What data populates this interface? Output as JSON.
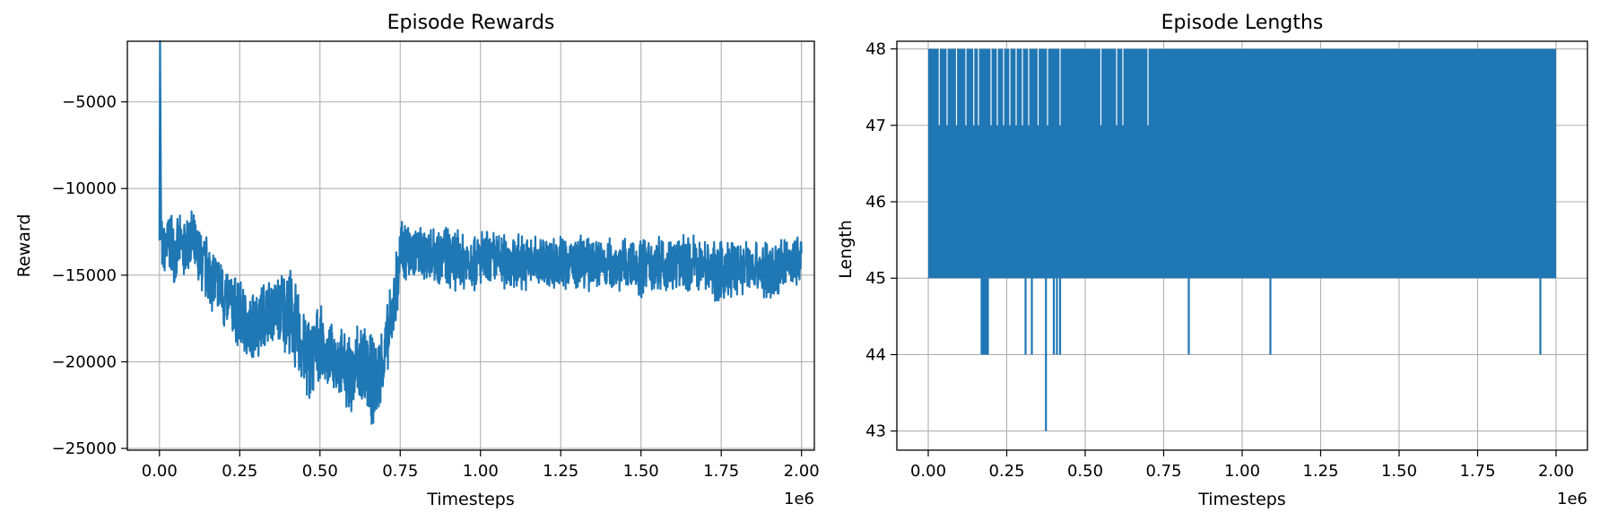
{
  "colors": {
    "series": "#1f77b4",
    "grid": "#b0b0b0",
    "axes": "#000000",
    "background": "#ffffff"
  },
  "chart_data": [
    {
      "type": "line",
      "title": "Episode Rewards",
      "xlabel": "Timesteps",
      "ylabel": "Reward",
      "x_offset_text": "1e6",
      "xlim": [
        -0.1,
        2.04
      ],
      "ylim": [
        -25100,
        -1500
      ],
      "grid": true,
      "xticks": [
        0,
        0.25,
        0.5,
        0.75,
        1.0,
        1.25,
        1.5,
        1.75,
        2.0
      ],
      "xtick_labels": [
        "0.00",
        "0.25",
        "0.50",
        "0.75",
        "1.00",
        "1.25",
        "1.50",
        "1.75",
        "2.00"
      ],
      "yticks": [
        -5000,
        -10000,
        -15000,
        -20000,
        -25000
      ],
      "ytick_labels": [
        "−5000",
        "−10000",
        "−15000",
        "−20000",
        "−25000"
      ],
      "series": [
        {
          "x": [
            0,
            0.002,
            0.005,
            0.01,
            0.02,
            0.03,
            0.04,
            0.05,
            0.06,
            0.08,
            0.1,
            0.12,
            0.15,
            0.18,
            0.2,
            0.22,
            0.25,
            0.28,
            0.3,
            0.33,
            0.35,
            0.38,
            0.4,
            0.43,
            0.45,
            0.47,
            0.5,
            0.52,
            0.55,
            0.57,
            0.6,
            0.62,
            0.65,
            0.67,
            0.7,
            0.72,
            0.74,
            0.75,
            0.78,
            0.8,
            0.85,
            0.9,
            0.95,
            1.0,
            1.05,
            1.1,
            1.15,
            1.2,
            1.25,
            1.3,
            1.35,
            1.4,
            1.45,
            1.5,
            1.55,
            1.6,
            1.65,
            1.7,
            1.75,
            1.8,
            1.85,
            1.9,
            1.95,
            2.0
          ],
          "low": [
            -13000,
            -2000,
            -14000,
            -15500,
            -15500,
            -15000,
            -15500,
            -15500,
            -15000,
            -15500,
            -15000,
            -16000,
            -17000,
            -17500,
            -18500,
            -18500,
            -19500,
            -20500,
            -20000,
            -19500,
            -19000,
            -19500,
            -20000,
            -21000,
            -22000,
            -23000,
            -21000,
            -21500,
            -22000,
            -22500,
            -23500,
            -23000,
            -23500,
            -24000,
            -22000,
            -20000,
            -18000,
            -16000,
            -15500,
            -15500,
            -15500,
            -16000,
            -16000,
            -16000,
            -16000,
            -16000,
            -16000,
            -16000,
            -16000,
            -16000,
            -16000,
            -16000,
            -16000,
            -16500,
            -16000,
            -16000,
            -16000,
            -16000,
            -17000,
            -16500,
            -16000,
            -17000,
            -16000,
            -15500
          ],
          "high": [
            -11500,
            -1500,
            -11000,
            -12000,
            -11500,
            -11000,
            -11000,
            -12000,
            -11500,
            -11500,
            -11000,
            -12000,
            -12500,
            -13500,
            -14000,
            -14500,
            -15000,
            -16000,
            -15500,
            -15000,
            -15000,
            -14500,
            -14000,
            -15500,
            -16500,
            -17000,
            -16500,
            -18000,
            -17500,
            -18000,
            -18500,
            -17000,
            -18000,
            -18500,
            -17500,
            -15500,
            -13000,
            -11500,
            -11700,
            -12000,
            -11800,
            -12000,
            -12300,
            -12200,
            -12300,
            -12400,
            -12600,
            -12500,
            -12500,
            -12600,
            -12600,
            -12500,
            -12800,
            -12600,
            -12500,
            -12700,
            -12500,
            -12800,
            -12900,
            -12700,
            -12800,
            -12900,
            -12700,
            -12500
          ]
        }
      ]
    },
    {
      "type": "line",
      "title": "Episode Lengths",
      "xlabel": "Timesteps",
      "ylabel": "Length",
      "x_offset_text": "1e6",
      "xlim": [
        -0.1,
        2.1
      ],
      "ylim": [
        42.75,
        48.1
      ],
      "grid": true,
      "xticks": [
        0,
        0.25,
        0.5,
        0.75,
        1.0,
        1.25,
        1.5,
        1.75,
        2.0
      ],
      "xtick_labels": [
        "0.00",
        "0.25",
        "0.50",
        "0.75",
        "1.00",
        "1.25",
        "1.50",
        "1.75",
        "2.00"
      ],
      "yticks": [
        48,
        47,
        46,
        45,
        44,
        43
      ],
      "ytick_labels": [
        "48",
        "47",
        "46",
        "45",
        "44",
        "43"
      ],
      "series": [
        {
          "x_start": 0,
          "x_end": 2.0,
          "band_low": 45,
          "band_high": 48,
          "dips_to_44": [
            0.17,
            0.175,
            0.18,
            0.185,
            0.19,
            0.31,
            0.33,
            0.4,
            0.41,
            0.42,
            0.83,
            1.09,
            1.95
          ],
          "dips_to_43": [
            0.375
          ]
        }
      ]
    }
  ]
}
